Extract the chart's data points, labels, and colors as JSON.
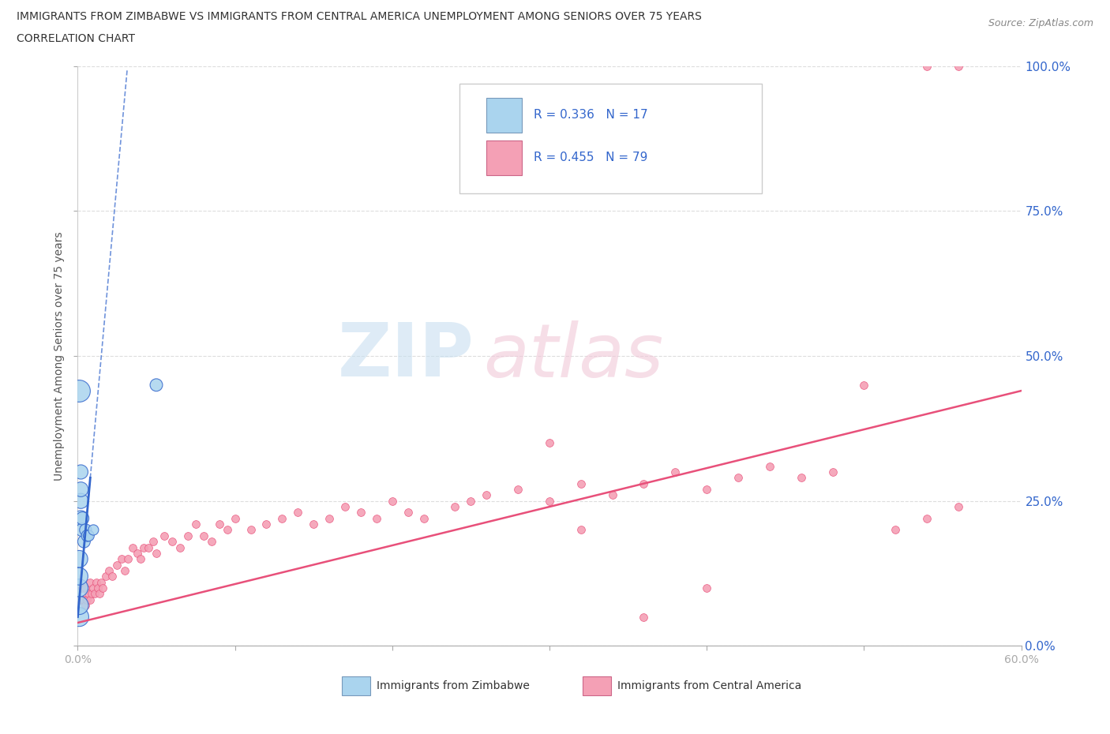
{
  "title_line1": "IMMIGRANTS FROM ZIMBABWE VS IMMIGRANTS FROM CENTRAL AMERICA UNEMPLOYMENT AMONG SENIORS OVER 75 YEARS",
  "title_line2": "CORRELATION CHART",
  "source": "Source: ZipAtlas.com",
  "ylabel": "Unemployment Among Seniors over 75 years",
  "xlim": [
    0.0,
    0.6
  ],
  "ylim": [
    0.0,
    1.0
  ],
  "xticks": [
    0.0,
    0.1,
    0.2,
    0.3,
    0.4,
    0.5,
    0.6
  ],
  "yticks": [
    0.0,
    0.25,
    0.5,
    0.75,
    1.0
  ],
  "legend_labels": [
    "Immigrants from Zimbabwe",
    "Immigrants from Central America"
  ],
  "legend_R": [
    0.336,
    0.455
  ],
  "legend_N": [
    17,
    79
  ],
  "zimbabwe_color": "#aad4ee",
  "central_america_color": "#f4a0b5",
  "zimbabwe_line_color": "#3366cc",
  "central_america_line_color": "#e8507a",
  "watermark_zip": "ZIP",
  "watermark_atlas": "atlas",
  "zim_trend_x0": 0.0,
  "zim_trend_x1": 0.3,
  "ca_trend_x0": 0.0,
  "ca_trend_x1": 0.6,
  "ca_trend_y0": 0.04,
  "ca_trend_y1": 0.44,
  "zim_x": [
    0.001,
    0.001,
    0.001,
    0.001,
    0.001,
    0.002,
    0.002,
    0.002,
    0.002,
    0.003,
    0.003,
    0.004,
    0.005,
    0.006,
    0.007,
    0.01,
    0.05
  ],
  "zim_y": [
    0.05,
    0.07,
    0.1,
    0.12,
    0.15,
    0.22,
    0.25,
    0.27,
    0.3,
    0.2,
    0.22,
    0.18,
    0.2,
    0.19,
    0.19,
    0.2,
    0.45
  ],
  "zim_sizes": [
    300,
    280,
    260,
    250,
    240,
    200,
    190,
    180,
    170,
    150,
    140,
    130,
    120,
    110,
    100,
    90,
    130
  ],
  "zim_outlier_x": [
    0.001
  ],
  "zim_outlier_y": [
    0.44
  ],
  "zim_outlier_size": [
    350
  ],
  "ca_x": [
    0.001,
    0.002,
    0.003,
    0.003,
    0.004,
    0.005,
    0.005,
    0.006,
    0.007,
    0.008,
    0.008,
    0.009,
    0.01,
    0.011,
    0.012,
    0.013,
    0.014,
    0.015,
    0.016,
    0.018,
    0.02,
    0.022,
    0.025,
    0.028,
    0.03,
    0.032,
    0.035,
    0.038,
    0.04,
    0.042,
    0.045,
    0.048,
    0.05,
    0.055,
    0.06,
    0.065,
    0.07,
    0.075,
    0.08,
    0.085,
    0.09,
    0.095,
    0.1,
    0.11,
    0.12,
    0.13,
    0.14,
    0.15,
    0.16,
    0.17,
    0.18,
    0.19,
    0.2,
    0.21,
    0.22,
    0.24,
    0.25,
    0.26,
    0.28,
    0.3,
    0.32,
    0.34,
    0.36,
    0.38,
    0.4,
    0.42,
    0.44,
    0.46,
    0.48,
    0.5,
    0.52,
    0.54,
    0.56,
    0.3,
    0.32,
    0.36,
    0.4,
    0.54,
    0.56
  ],
  "ca_y": [
    0.08,
    0.08,
    0.08,
    0.1,
    0.08,
    0.07,
    0.1,
    0.08,
    0.09,
    0.08,
    0.11,
    0.09,
    0.1,
    0.09,
    0.11,
    0.1,
    0.09,
    0.11,
    0.1,
    0.12,
    0.13,
    0.12,
    0.14,
    0.15,
    0.13,
    0.15,
    0.17,
    0.16,
    0.15,
    0.17,
    0.17,
    0.18,
    0.16,
    0.19,
    0.18,
    0.17,
    0.19,
    0.21,
    0.19,
    0.18,
    0.21,
    0.2,
    0.22,
    0.2,
    0.21,
    0.22,
    0.23,
    0.21,
    0.22,
    0.24,
    0.23,
    0.22,
    0.25,
    0.23,
    0.22,
    0.24,
    0.25,
    0.26,
    0.27,
    0.25,
    0.28,
    0.26,
    0.28,
    0.3,
    0.27,
    0.29,
    0.31,
    0.29,
    0.3,
    0.45,
    0.2,
    0.22,
    0.24,
    0.35,
    0.2,
    0.05,
    0.1,
    1.0,
    1.0
  ],
  "ca_size": 50
}
